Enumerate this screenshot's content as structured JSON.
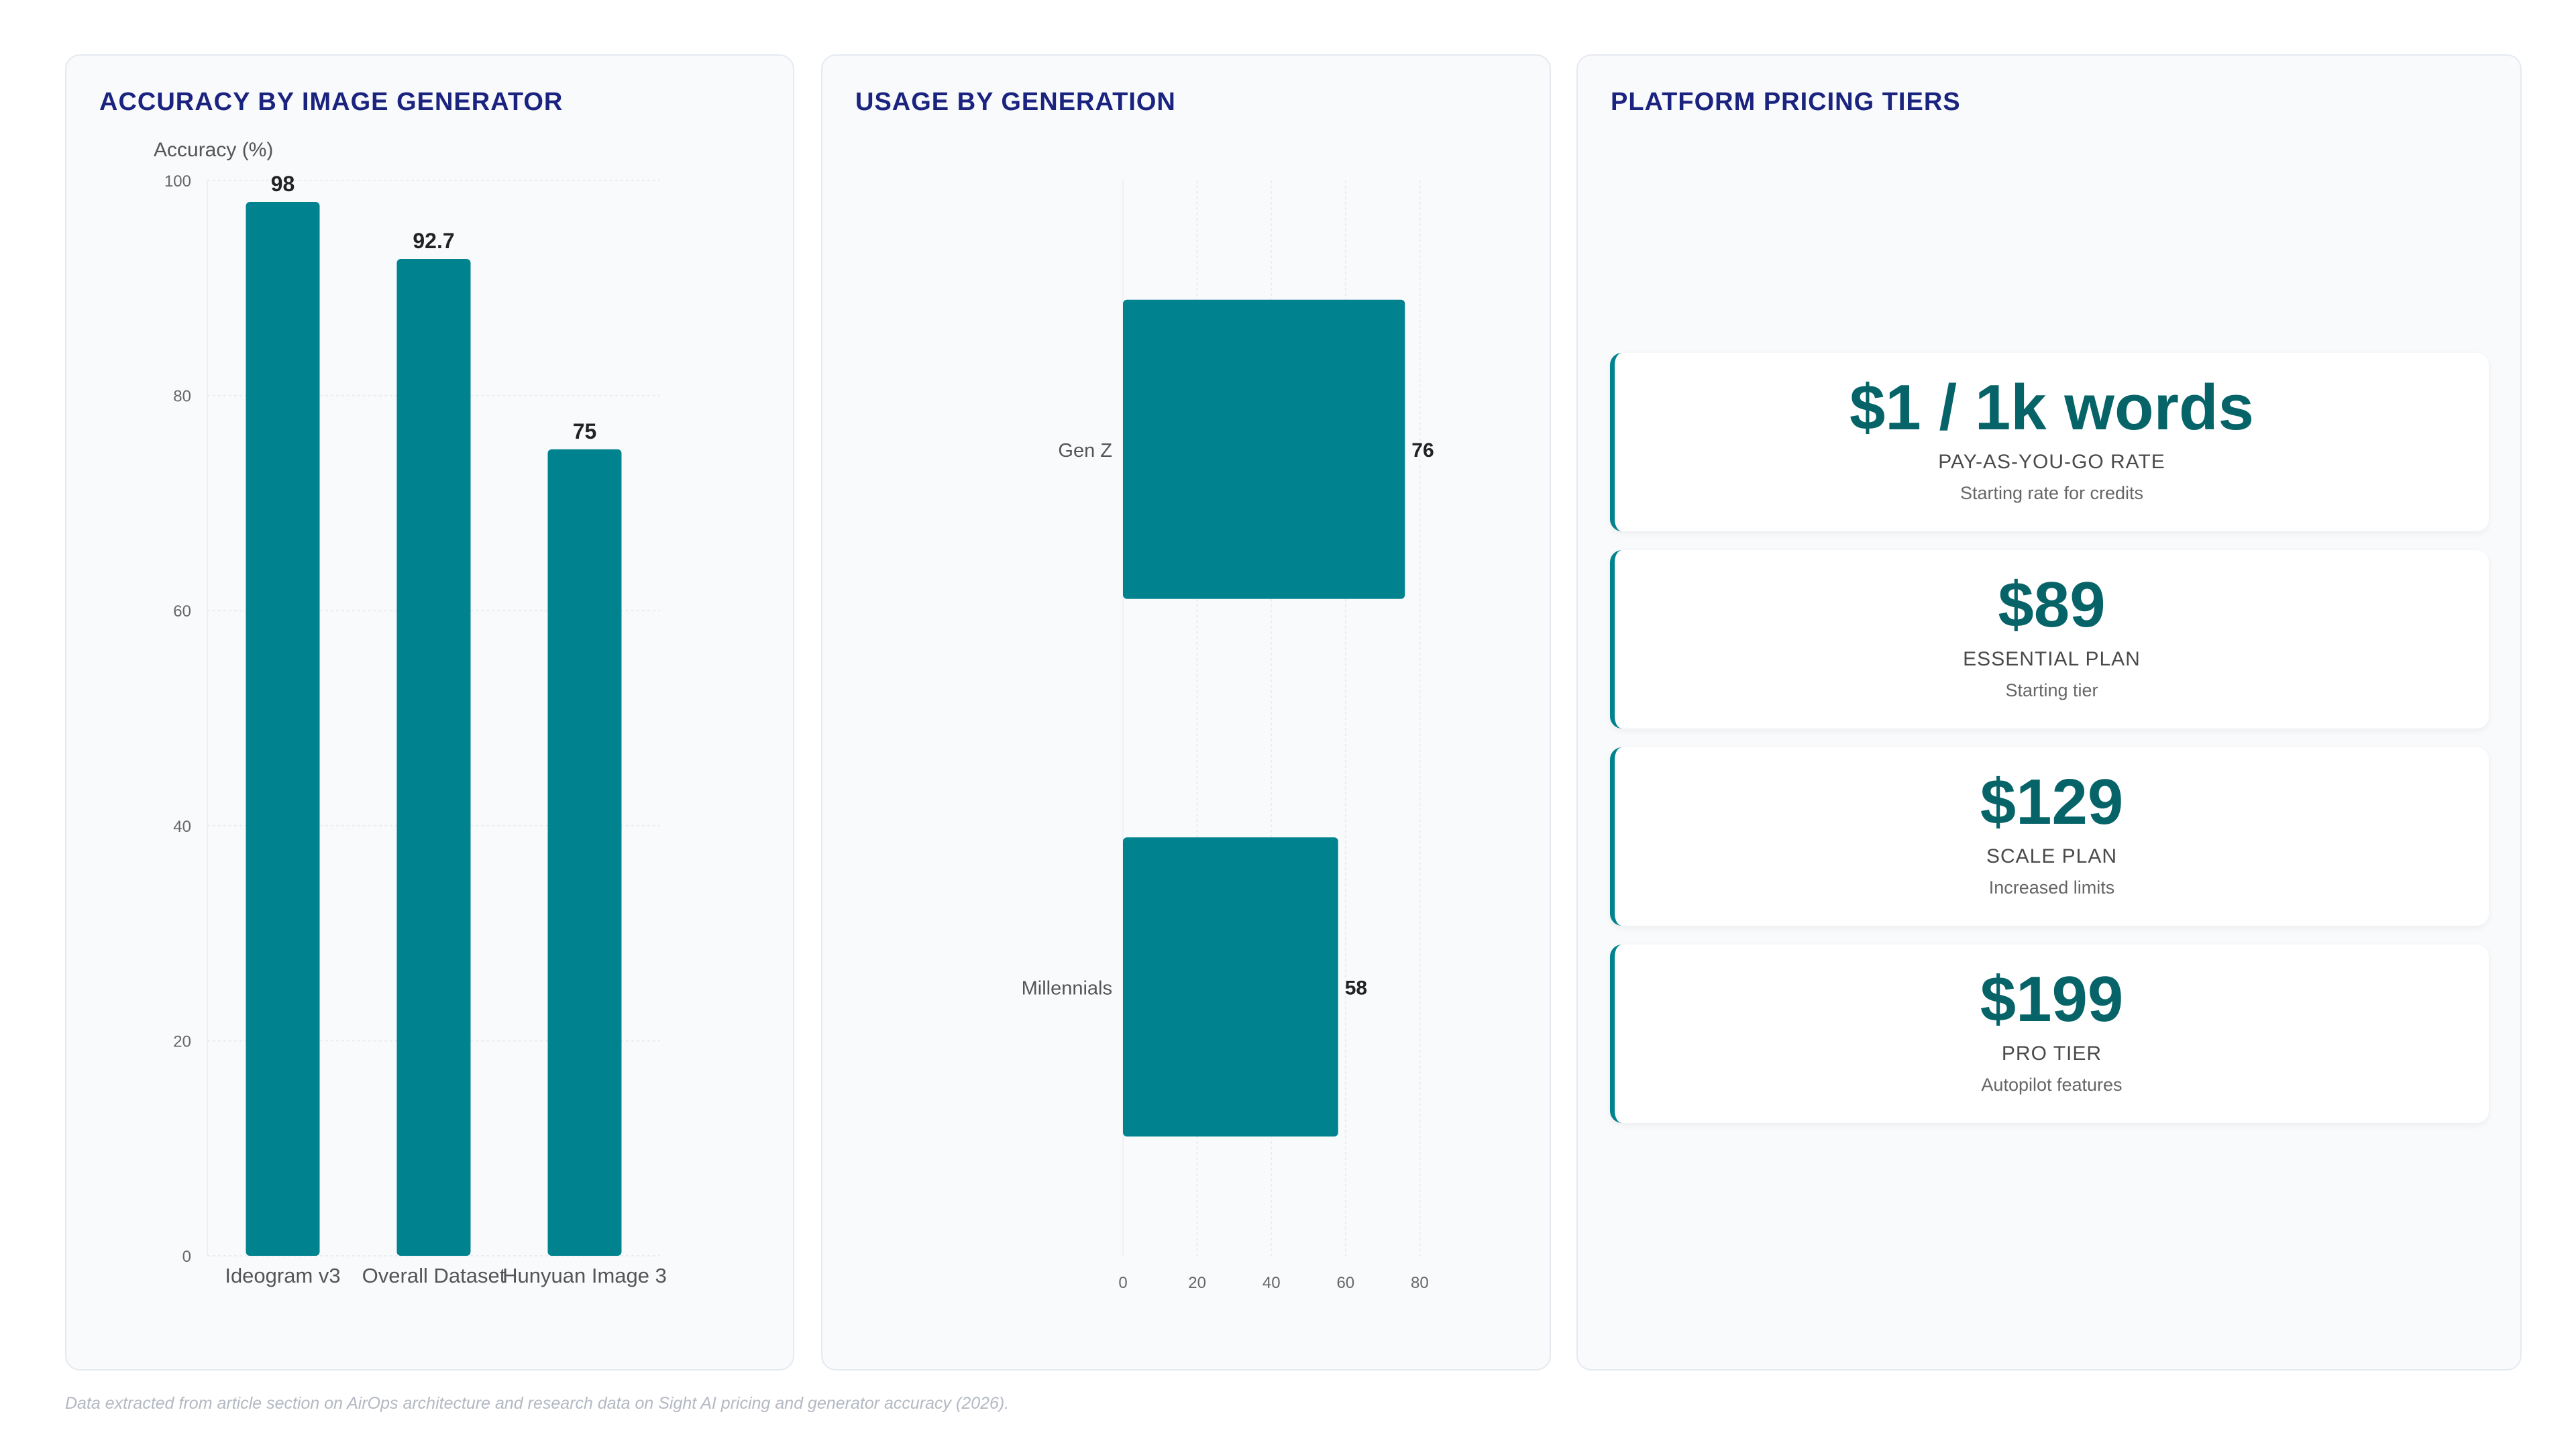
{
  "footnote": "Data extracted from article section on AirOps architecture and research data on Sight AI pricing and generator accuracy (2026).",
  "colors": {
    "bar": "#00838f",
    "title": "#1a237e",
    "price": "#066468"
  },
  "chart_data": [
    {
      "type": "bar",
      "orientation": "vertical",
      "title": "ACCURACY BY IMAGE GENERATOR",
      "ylabel": "Accuracy (%)",
      "xlabel": "",
      "categories": [
        "Ideogram v3",
        "Overall Dataset",
        "Hunyuan Image 3"
      ],
      "values": [
        98,
        92.7,
        75
      ],
      "ylim": [
        0,
        100
      ],
      "yticks": [
        0,
        20,
        40,
        60,
        80,
        100
      ],
      "data_labels": [
        "98",
        "92.7",
        "75"
      ],
      "grid": true
    },
    {
      "type": "bar",
      "orientation": "horizontal",
      "title": "USAGE BY GENERATION",
      "categories": [
        "Gen Z",
        "Millennials"
      ],
      "values": [
        76,
        58
      ],
      "xlim": [
        0,
        80
      ],
      "xticks": [
        0,
        20,
        40,
        60,
        80
      ],
      "data_labels": [
        "76",
        "58"
      ],
      "grid": true
    }
  ],
  "pricing": {
    "title": "PLATFORM PRICING TIERS",
    "cards": [
      {
        "value": "$1 / 1k words",
        "label": "PAY-AS-YOU-GO RATE",
        "desc": "Starting rate for credits"
      },
      {
        "value": "$89",
        "label": "ESSENTIAL PLAN",
        "desc": "Starting tier"
      },
      {
        "value": "$129",
        "label": "SCALE PLAN",
        "desc": "Increased limits"
      },
      {
        "value": "$199",
        "label": "PRO TIER",
        "desc": "Autopilot features"
      }
    ]
  }
}
